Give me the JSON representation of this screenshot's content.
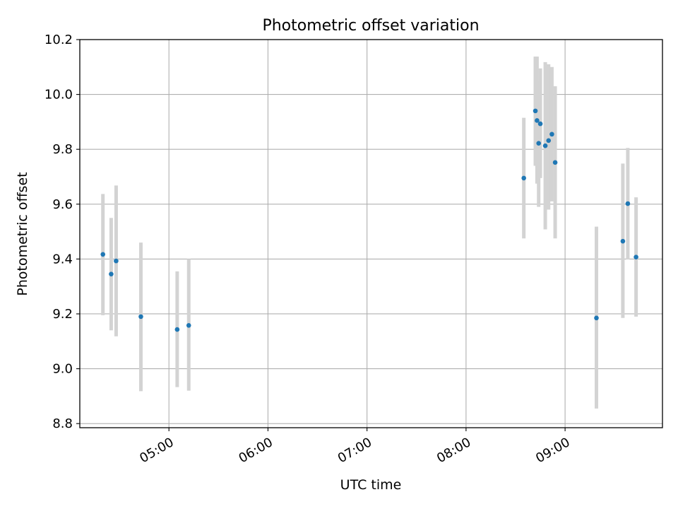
{
  "chart_data": {
    "type": "scatter",
    "title": "Photometric offset variation",
    "xlabel": "UTC time",
    "ylabel": "Photometric offset",
    "x_tick_labels": [
      "05:00",
      "06:00",
      "07:00",
      "08:00",
      "09:00"
    ],
    "x_tick_hours": [
      5,
      6,
      7,
      8,
      9
    ],
    "y_tick_labels": [
      "8.8",
      "9.0",
      "9.2",
      "9.4",
      "9.6",
      "9.8",
      "10.0",
      "10.2"
    ],
    "xlim": [
      "04:06",
      "09:59"
    ],
    "ylim": [
      8.785,
      10.2
    ],
    "grid": true,
    "marker_color": "#1f77b4",
    "errorbar_color": "#d3d3d3",
    "points": [
      {
        "time": "04:20",
        "y": 9.417,
        "low": 9.195,
        "high": 9.637
      },
      {
        "time": "04:25",
        "y": 9.345,
        "low": 9.14,
        "high": 9.55
      },
      {
        "time": "04:28",
        "y": 9.393,
        "low": 9.118,
        "high": 9.668
      },
      {
        "time": "04:43",
        "y": 9.19,
        "low": 8.918,
        "high": 9.46
      },
      {
        "time": "05:05",
        "y": 9.143,
        "low": 8.933,
        "high": 9.355
      },
      {
        "time": "05:12",
        "y": 9.158,
        "low": 8.92,
        "high": 9.4
      },
      {
        "time": "08:35",
        "y": 9.695,
        "low": 9.475,
        "high": 9.915
      },
      {
        "time": "08:42",
        "y": 9.94,
        "low": 9.74,
        "high": 10.138
      },
      {
        "time": "08:43",
        "y": 9.905,
        "low": 9.675,
        "high": 10.138
      },
      {
        "time": "08:44",
        "y": 9.822,
        "low": 9.59,
        "high": 10.05
      },
      {
        "time": "08:45",
        "y": 9.893,
        "low": 9.695,
        "high": 10.095
      },
      {
        "time": "08:48",
        "y": 9.813,
        "low": 9.508,
        "high": 10.118
      },
      {
        "time": "08:50",
        "y": 9.832,
        "low": 9.58,
        "high": 10.11
      },
      {
        "time": "08:52",
        "y": 9.855,
        "low": 9.61,
        "high": 10.1
      },
      {
        "time": "08:54",
        "y": 9.752,
        "low": 9.475,
        "high": 10.03
      },
      {
        "time": "09:19",
        "y": 9.185,
        "low": 8.855,
        "high": 9.518
      },
      {
        "time": "09:35",
        "y": 9.465,
        "low": 9.185,
        "high": 9.748
      },
      {
        "time": "09:38",
        "y": 9.602,
        "low": 9.398,
        "high": 9.805
      },
      {
        "time": "09:43",
        "y": 9.407,
        "low": 9.19,
        "high": 9.625
      }
    ]
  }
}
